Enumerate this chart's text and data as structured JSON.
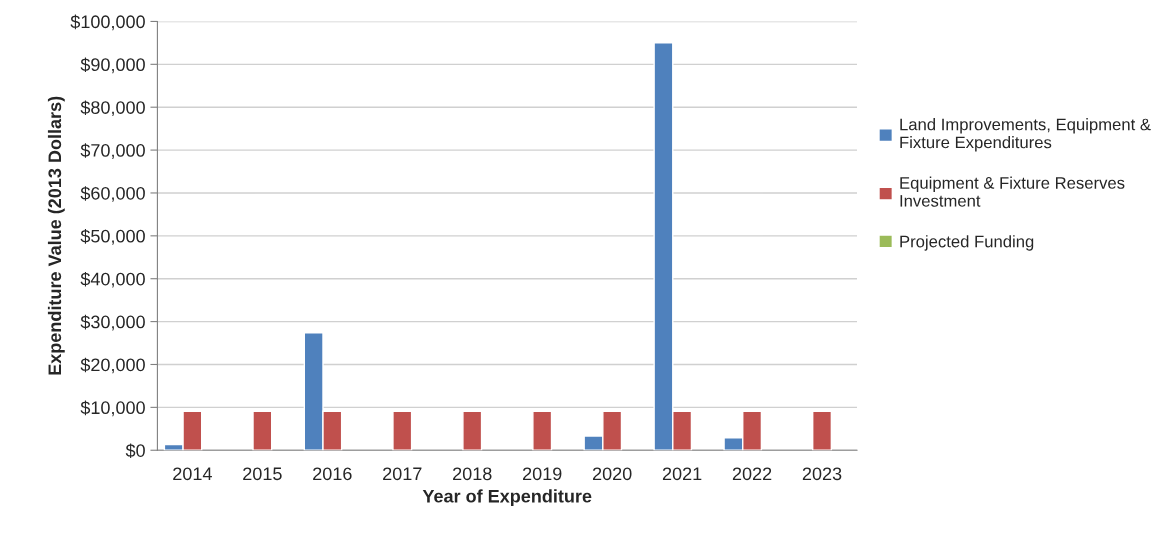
{
  "chart_data": {
    "type": "bar",
    "xlabel": "Year of Expenditure",
    "ylabel": "Expenditure Value (2013 Dollars)",
    "categories": [
      "2014",
      "2015",
      "2016",
      "2017",
      "2018",
      "2019",
      "2020",
      "2021",
      "2022",
      "2023"
    ],
    "series": [
      {
        "name": "Land Improvements, Equipment & Fixture Expenditures",
        "color": "#4f81bd",
        "values": [
          1300,
          null,
          27400,
          null,
          null,
          null,
          3300,
          95000,
          2900,
          null
        ]
      },
      {
        "name": "Equipment & Fixture Reserves Investment",
        "color": "#c0504d",
        "values": [
          9100,
          9100,
          9100,
          9100,
          9100,
          9100,
          9100,
          9100,
          9100,
          9100
        ]
      },
      {
        "name": "Projected Funding",
        "color": "#9bbb59",
        "values": [
          null,
          null,
          null,
          null,
          null,
          null,
          null,
          null,
          null,
          null
        ]
      }
    ],
    "ylim": [
      0,
      100000
    ],
    "yticks": [
      {
        "value": 0,
        "label": "$0"
      },
      {
        "value": 10000,
        "label": "$10,000"
      },
      {
        "value": 20000,
        "label": "$20,000"
      },
      {
        "value": 30000,
        "label": "$30,000"
      },
      {
        "value": 40000,
        "label": "$40,000"
      },
      {
        "value": 50000,
        "label": "$50,000"
      },
      {
        "value": 60000,
        "label": "$60,000"
      },
      {
        "value": 70000,
        "label": "$70,000"
      },
      {
        "value": 80000,
        "label": "$80,000"
      },
      {
        "value": 90000,
        "label": "$90,000"
      },
      {
        "value": 100000,
        "label": "$100,000"
      }
    ],
    "grid": "y",
    "legend": "right"
  }
}
